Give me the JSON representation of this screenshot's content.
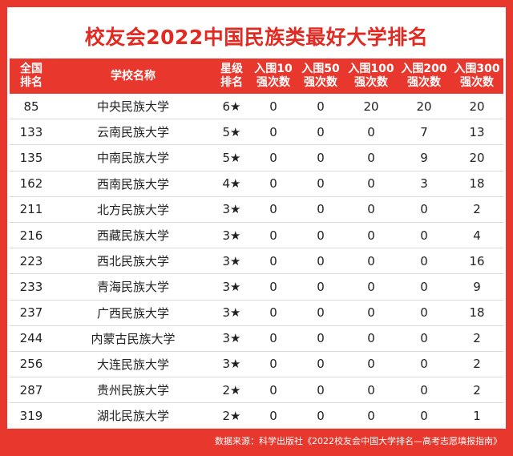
{
  "title": "校友会2022中国民族类最好大学排名",
  "table": {
    "header": [
      [
        "全国",
        "排名"
      ],
      [
        "学校名称"
      ],
      [
        "星级",
        "排名"
      ],
      [
        "入围10",
        "强次数"
      ],
      [
        "入围50",
        "强次数"
      ],
      [
        "入围100",
        "强次数"
      ],
      [
        "入围200",
        "强次数"
      ],
      [
        "入围300",
        "强次数"
      ]
    ],
    "rows": [
      [
        85,
        "中央民族大学",
        "6★",
        0,
        0,
        20,
        20,
        20
      ],
      [
        133,
        "云南民族大学",
        "5★",
        0,
        0,
        0,
        7,
        13
      ],
      [
        135,
        "中南民族大学",
        "5★",
        0,
        0,
        0,
        9,
        20
      ],
      [
        162,
        "西南民族大学",
        "4★",
        0,
        0,
        0,
        3,
        18
      ],
      [
        211,
        "北方民族大学",
        "3★",
        0,
        0,
        0,
        0,
        2
      ],
      [
        216,
        "西藏民族大学",
        "3★",
        0,
        0,
        0,
        0,
        4
      ],
      [
        223,
        "西北民族大学",
        "3★",
        0,
        0,
        0,
        0,
        16
      ],
      [
        233,
        "青海民族大学",
        "3★",
        0,
        0,
        0,
        0,
        9
      ],
      [
        237,
        "广西民族大学",
        "3★",
        0,
        0,
        0,
        0,
        18
      ],
      [
        244,
        "内蒙古民族大学",
        "3★",
        0,
        0,
        0,
        0,
        2
      ],
      [
        256,
        "大连民族大学",
        "3★",
        0,
        0,
        0,
        0,
        2
      ],
      [
        287,
        "贵州民族大学",
        "2★",
        0,
        0,
        0,
        0,
        2
      ],
      [
        319,
        "湖北民族大学",
        "2★",
        0,
        0,
        0,
        0,
        1
      ]
    ]
  },
  "footer": "数据来源：科学出版社《2022校友会中国大学排名—高考志愿填报指南》"
}
